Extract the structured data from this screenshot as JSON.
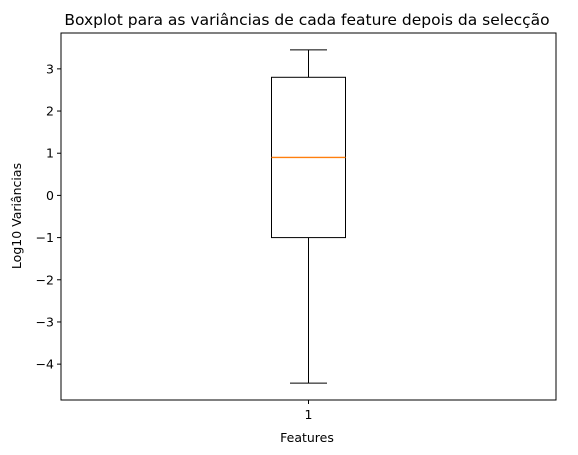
{
  "chart_data": {
    "type": "boxplot",
    "title": "Boxplot para as variâncias de cada feature depois da selecção",
    "xlabel": "Features",
    "ylabel": "Log10 Variâncias",
    "categories": [
      "1"
    ],
    "boxes": [
      {
        "category": "1",
        "whisker_low": -4.45,
        "q1": -1.0,
        "median": 0.9,
        "q3": 2.8,
        "whisker_high": 3.45
      }
    ],
    "ylim": [
      -4.85,
      3.85
    ],
    "yticks": [
      -4,
      -3,
      -2,
      -1,
      0,
      1,
      2,
      3
    ],
    "ytick_labels": [
      "−4",
      "−3",
      "−2",
      "−1",
      "0",
      "1",
      "2",
      "3"
    ],
    "grid": false,
    "colors": {
      "box": "#000000",
      "median": "#ff7f0e"
    }
  }
}
